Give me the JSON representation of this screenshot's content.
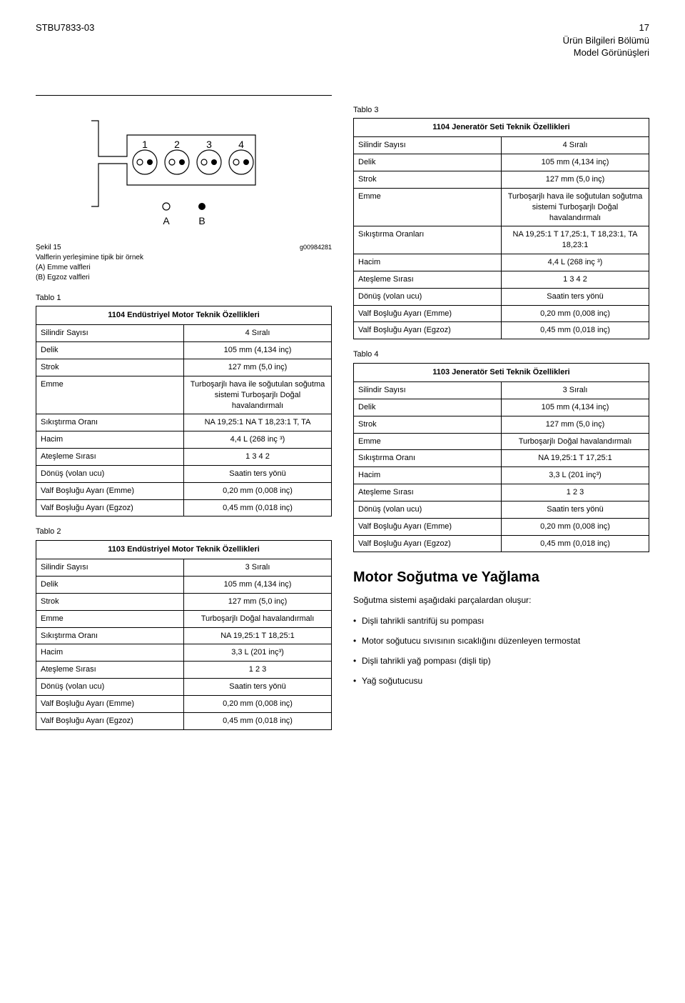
{
  "header": {
    "left": "STBU7833-03",
    "pagenum": "17",
    "line2": "Ürün Bilgileri Bölümü",
    "line3": "Model Görünüşleri"
  },
  "figure": {
    "caption_label": "Şekil 15",
    "caption_desc": "Valflerin yerleşimine tipik bir örnek",
    "caption_a": "(A) Emme valfleri",
    "caption_b": "(B) Egzoz valfleri",
    "code": "g00984281",
    "cylinder_labels": [
      "1",
      "2",
      "3",
      "4"
    ],
    "label_a": "A",
    "label_b": "B"
  },
  "table1": {
    "label": "Tablo 1",
    "title": "1104 Endüstriyel Motor Teknik Özellikleri",
    "rows": [
      {
        "k": "Silindir Sayısı",
        "v": "4 Sıralı"
      },
      {
        "k": "Delik",
        "v": "105 mm (4,134 inç)"
      },
      {
        "k": "Strok",
        "v": "127 mm (5,0 inç)"
      },
      {
        "k": "Emme",
        "v": "Turboşarjlı hava ile soğutulan soğutma sistemi Turboşarjlı Doğal havalandırmalı"
      },
      {
        "k": "Sıkıştırma Oranı",
        "v": "NA 19,25:1 NA T 18,23:1 T, TA"
      },
      {
        "k": "Hacim",
        "v": "4,4 L (268 inç ³)"
      },
      {
        "k": "Ateşleme Sırası",
        "v": "1 3 4 2"
      },
      {
        "k": "Dönüş (volan ucu)",
        "v": "Saatin ters yönü"
      },
      {
        "k": "Valf Boşluğu Ayarı (Emme)",
        "v": "0,20 mm (0,008 inç)"
      },
      {
        "k": "Valf Boşluğu Ayarı (Egzoz)",
        "v": "0,45 mm (0,018 inç)"
      }
    ]
  },
  "table2": {
    "label": "Tablo 2",
    "title": "1103 Endüstriyel Motor Teknik Özellikleri",
    "rows": [
      {
        "k": "Silindir Sayısı",
        "v": "3 Sıralı"
      },
      {
        "k": "Delik",
        "v": "105 mm (4,134 inç)"
      },
      {
        "k": "Strok",
        "v": "127 mm (5,0 inç)"
      },
      {
        "k": "Emme",
        "v": "Turboşarjlı Doğal havalandırmalı"
      },
      {
        "k": "Sıkıştırma Oranı",
        "v": "NA 19,25:1 T 18,25:1"
      },
      {
        "k": "Hacim",
        "v": "3,3 L (201 inç³)"
      },
      {
        "k": "Ateşleme Sırası",
        "v": "1 2 3"
      },
      {
        "k": "Dönüş (volan ucu)",
        "v": "Saatin ters yönü"
      },
      {
        "k": "Valf Boşluğu Ayarı (Emme)",
        "v": "0,20 mm (0,008 inç)"
      },
      {
        "k": "Valf Boşluğu Ayarı (Egzoz)",
        "v": "0,45 mm (0,018 inç)"
      }
    ]
  },
  "table3": {
    "label": "Tablo 3",
    "title": "1104 Jeneratör Seti Teknik Özellikleri",
    "rows": [
      {
        "k": "Silindir Sayısı",
        "v": "4 Sıralı"
      },
      {
        "k": "Delik",
        "v": "105 mm (4,134 inç)"
      },
      {
        "k": "Strok",
        "v": "127 mm (5,0 inç)"
      },
      {
        "k": "Emme",
        "v": "Turboşarjlı hava ile soğutulan soğutma sistemi Turboşarjlı Doğal havalandırmalı"
      },
      {
        "k": "Sıkıştırma Oranları",
        "v": "NA 19,25:1 T 17,25:1, T 18,23:1, TA 18,23:1"
      },
      {
        "k": "Hacim",
        "v": "4,4 L (268 inç ³)"
      },
      {
        "k": "Ateşleme Sırası",
        "v": "1 3 4 2"
      },
      {
        "k": "Dönüş (volan ucu)",
        "v": "Saatin ters yönü"
      },
      {
        "k": "Valf Boşluğu Ayarı (Emme)",
        "v": "0,20 mm (0,008 inç)"
      },
      {
        "k": "Valf Boşluğu Ayarı (Egzoz)",
        "v": "0,45 mm (0,018 inç)"
      }
    ]
  },
  "table4": {
    "label": "Tablo 4",
    "title": "1103 Jeneratör Seti Teknik Özellikleri",
    "rows": [
      {
        "k": "Silindir Sayısı",
        "v": "3 Sıralı"
      },
      {
        "k": "Delik",
        "v": "105 mm (4,134 inç)"
      },
      {
        "k": "Strok",
        "v": "127 mm (5,0 inç)"
      },
      {
        "k": "Emme",
        "v": "Turboşarjlı Doğal havalandırmalı"
      },
      {
        "k": "Sıkıştırma Oranı",
        "v": "NA 19,25:1 T 17,25:1"
      },
      {
        "k": "Hacim",
        "v": "3,3 L (201 inç³)"
      },
      {
        "k": "Ateşleme Sırası",
        "v": "1 2 3"
      },
      {
        "k": "Dönüş (volan ucu)",
        "v": "Saatin ters yönü"
      },
      {
        "k": "Valf Boşluğu Ayarı (Emme)",
        "v": "0,20 mm (0,008 inç)"
      },
      {
        "k": "Valf Boşluğu Ayarı (Egzoz)",
        "v": "0,45 mm (0,018 inç)"
      }
    ]
  },
  "section": {
    "heading": "Motor Soğutma ve Yağlama",
    "intro": "Soğutma sistemi aşağıdaki parçalardan oluşur:",
    "bullets": [
      "Dişli tahrikli santrifüj su pompası",
      "Motor soğutucu sıvısının sıcaklığını düzenleyen termostat",
      "Dişli tahrikli yağ pompası (dişli tip)",
      "Yağ soğutucusu"
    ]
  }
}
